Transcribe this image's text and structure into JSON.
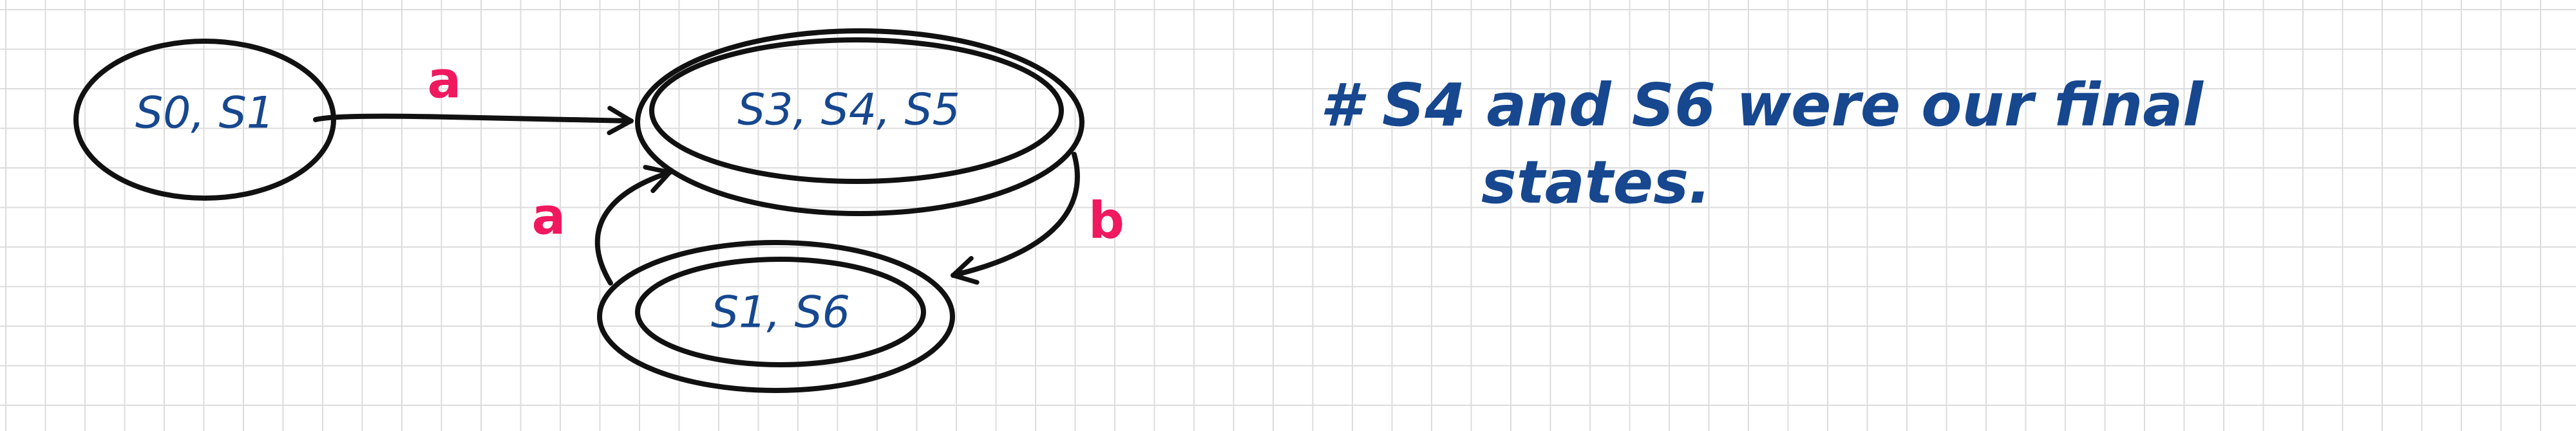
{
  "diagram": {
    "states": {
      "s01": {
        "label": "S0, S1"
      },
      "s345": {
        "label": "S3, S4, S5"
      },
      "s16": {
        "label": "S1, S6"
      }
    },
    "edges": {
      "s01_to_s345": {
        "label": "a"
      },
      "s345_to_s16": {
        "label": "b"
      },
      "s16_to_s345": {
        "label": "a"
      }
    },
    "note": {
      "line1": "# S4 and S6 were our final",
      "line2": "states."
    }
  },
  "colors": {
    "ink": "#111111",
    "state_text": "#16478f",
    "edge_label": "#f0185e",
    "grid": "#dcdcdc"
  }
}
